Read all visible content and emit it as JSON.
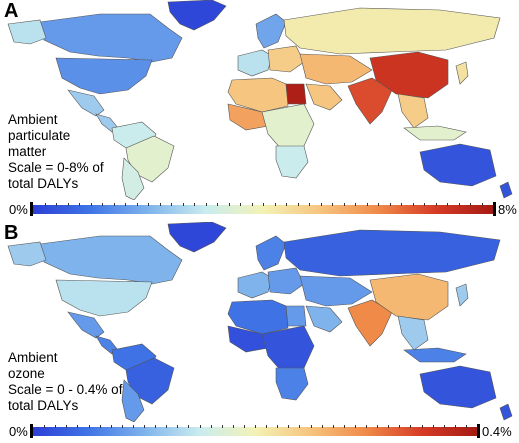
{
  "colors": {
    "water": "#ffffff",
    "border": "#555555",
    "scale": [
      "#2c3fd6",
      "#3f74e6",
      "#7fb3ec",
      "#c9ecef",
      "#f3f2b6",
      "#f6c47e",
      "#f08a49",
      "#d63b26",
      "#a61a14"
    ]
  },
  "panels": [
    {
      "letter": "A",
      "caption": [
        "Ambient",
        "particulate",
        "matter",
        "Scale = 0-8% of",
        "total DALYs"
      ],
      "scale_min_label": "0%",
      "scale_max_label": "8%",
      "regions": [
        {
          "name": "greenland",
          "level": 0.02
        },
        {
          "name": "canada",
          "level": 0.2
        },
        {
          "name": "alaska",
          "level": 0.35
        },
        {
          "name": "usa",
          "level": 0.18
        },
        {
          "name": "mexico",
          "level": 0.3
        },
        {
          "name": "central-america",
          "level": 0.3
        },
        {
          "name": "south-america-north",
          "level": 0.38
        },
        {
          "name": "brazil",
          "level": 0.45
        },
        {
          "name": "south-america-south",
          "level": 0.4
        },
        {
          "name": "europe-west",
          "level": 0.35
        },
        {
          "name": "europe-east",
          "level": 0.6
        },
        {
          "name": "scandinavia",
          "level": 0.22
        },
        {
          "name": "russia",
          "level": 0.52
        },
        {
          "name": "north-africa",
          "level": 0.62
        },
        {
          "name": "egypt",
          "level": 0.98
        },
        {
          "name": "west-africa",
          "level": 0.7
        },
        {
          "name": "central-africa",
          "level": 0.45
        },
        {
          "name": "southern-africa",
          "level": 0.38
        },
        {
          "name": "arabia",
          "level": 0.62
        },
        {
          "name": "central-asia",
          "level": 0.65
        },
        {
          "name": "india",
          "level": 0.85
        },
        {
          "name": "china",
          "level": 0.9
        },
        {
          "name": "southeast-asia",
          "level": 0.6
        },
        {
          "name": "japan",
          "level": 0.55
        },
        {
          "name": "indonesia",
          "level": 0.45
        },
        {
          "name": "australia",
          "level": 0.05
        },
        {
          "name": "new-zealand",
          "level": 0.05
        }
      ]
    },
    {
      "letter": "B",
      "caption": [
        "Ambient",
        "ozone",
        "Scale = 0 - 0.4% of",
        "total DALYs"
      ],
      "scale_min_label": "0%",
      "scale_max_label": "0.4%",
      "regions": [
        {
          "name": "greenland",
          "level": 0.02
        },
        {
          "name": "canada",
          "level": 0.25
        },
        {
          "name": "alaska",
          "level": 0.3
        },
        {
          "name": "usa",
          "level": 0.35
        },
        {
          "name": "mexico",
          "level": 0.2
        },
        {
          "name": "central-america",
          "level": 0.15
        },
        {
          "name": "south-america-north",
          "level": 0.12
        },
        {
          "name": "brazil",
          "level": 0.08
        },
        {
          "name": "south-america-south",
          "level": 0.2
        },
        {
          "name": "europe-west",
          "level": 0.25
        },
        {
          "name": "europe-east",
          "level": 0.2
        },
        {
          "name": "scandinavia",
          "level": 0.15
        },
        {
          "name": "russia",
          "level": 0.08
        },
        {
          "name": "north-africa",
          "level": 0.12
        },
        {
          "name": "egypt",
          "level": 0.2
        },
        {
          "name": "west-africa",
          "level": 0.04
        },
        {
          "name": "central-africa",
          "level": 0.05
        },
        {
          "name": "southern-africa",
          "level": 0.15
        },
        {
          "name": "arabia",
          "level": 0.25
        },
        {
          "name": "central-asia",
          "level": 0.2
        },
        {
          "name": "india",
          "level": 0.75
        },
        {
          "name": "china",
          "level": 0.65
        },
        {
          "name": "southeast-asia",
          "level": 0.3
        },
        {
          "name": "japan",
          "level": 0.3
        },
        {
          "name": "indonesia",
          "level": 0.15
        },
        {
          "name": "australia",
          "level": 0.05
        },
        {
          "name": "new-zealand",
          "level": 0.05
        }
      ]
    }
  ]
}
